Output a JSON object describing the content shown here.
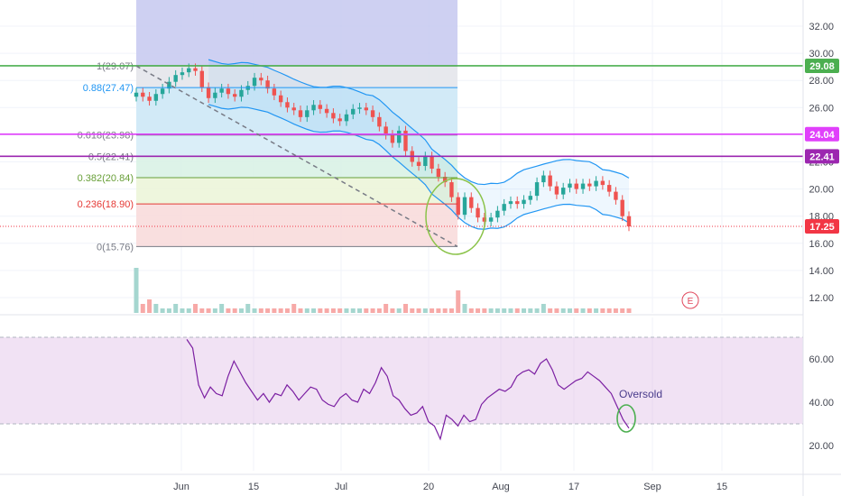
{
  "chart_data": {
    "type": "candlestick",
    "price_axis": {
      "ticks": [
        "32.00",
        "30.00",
        "28.00",
        "26.00",
        "24.00",
        "22.00",
        "20.00",
        "18.00",
        "16.00",
        "14.00",
        "12.00"
      ],
      "range": [
        10.8,
        33.4
      ]
    },
    "x_ticks": [
      "Jun",
      "15",
      "Jul",
      "15",
      "20",
      "Aug",
      "17",
      "Sep",
      "15"
    ],
    "fib_levels": [
      {
        "ratio": "1(29.07)",
        "price": 29.07,
        "color": "#787b86"
      },
      {
        "ratio": "0.88(27.47)",
        "price": 27.47,
        "color": "#2196f3"
      },
      {
        "ratio": "0.618(23.98)",
        "price": 23.98,
        "color": "#787b86"
      },
      {
        "ratio": "0.5(22.41)",
        "price": 22.41,
        "color": "#787b86"
      },
      {
        "ratio": "0.382(20.84)",
        "price": 20.84,
        "color": "#689f38"
      },
      {
        "ratio": "0.236(18.90)",
        "price": 18.9,
        "color": "#e53935"
      },
      {
        "ratio": "0(15.76)",
        "price": 15.76,
        "color": "#787b86"
      }
    ],
    "horizontal_lines": [
      {
        "price": 29.08,
        "label": "29.08",
        "color": "#4caf50"
      },
      {
        "price": 24.04,
        "label": "24.04",
        "color": "#e040fb"
      },
      {
        "price": 22.41,
        "label": "22.41",
        "color": "#9c27b0"
      }
    ],
    "last_price": {
      "price": 17.25,
      "label": "17.25",
      "color": "#f23645"
    },
    "close": [
      27.1,
      26.8,
      26.5,
      27.0,
      27.4,
      27.9,
      28.4,
      28.6,
      28.9,
      28.7,
      27.5,
      26.7,
      27.1,
      27.4,
      27.0,
      26.8,
      27.3,
      27.6,
      28.2,
      28.0,
      27.4,
      26.9,
      26.4,
      26.0,
      25.8,
      25.3,
      25.8,
      26.2,
      25.9,
      25.6,
      25.2,
      25.0,
      25.5,
      25.9,
      26.0,
      25.8,
      25.3,
      24.6,
      24.0,
      23.4,
      24.3,
      22.8,
      22.0,
      21.7,
      22.4,
      21.5,
      20.9,
      20.5,
      19.4,
      18.1,
      19.4,
      18.6,
      17.9,
      17.6,
      17.9,
      18.4,
      18.9,
      19.1,
      18.9,
      19.2,
      19.5,
      20.5,
      21.0,
      20.2,
      19.6,
      20.1,
      20.4,
      20.0,
      20.4,
      20.2,
      20.6,
      20.3,
      19.8,
      19.2,
      18.0,
      17.25
    ],
    "volume": [
      10,
      2,
      3,
      2,
      1,
      1,
      2,
      1,
      1,
      2,
      1,
      1,
      1,
      2,
      1,
      1,
      1,
      2,
      1,
      1,
      1,
      1,
      1,
      1,
      2,
      1,
      1,
      1,
      1,
      1,
      1,
      1,
      1,
      1,
      1,
      1,
      1,
      1,
      2,
      1,
      1,
      2,
      1,
      1,
      1,
      1,
      1,
      1,
      1,
      5,
      2,
      1,
      1,
      1,
      1,
      1,
      1,
      1,
      1,
      1,
      1,
      1,
      2,
      1,
      1,
      1,
      1,
      1,
      1,
      1,
      1,
      1,
      1,
      1,
      1,
      1
    ],
    "rsi": {
      "ticks": [
        "60.00",
        "40.00",
        "20.00"
      ],
      "range": [
        10,
        74
      ],
      "upper": 70,
      "lower": 30,
      "values": [
        69,
        65,
        48,
        42,
        47,
        44,
        43,
        52,
        59,
        54,
        49,
        45,
        41,
        44,
        40,
        44,
        43,
        48,
        45,
        41,
        44,
        47,
        46,
        41,
        39,
        38,
        42,
        44,
        41,
        40,
        46,
        44,
        49,
        56,
        52,
        43,
        41,
        37,
        34,
        35,
        38,
        31,
        29,
        23,
        34,
        32,
        29,
        34,
        31,
        32,
        39,
        42,
        44,
        46,
        45,
        47,
        52,
        54,
        55,
        53,
        58,
        60,
        55,
        48,
        46,
        48,
        50,
        51,
        54,
        52,
        50,
        47,
        44,
        38,
        32,
        28
      ]
    },
    "annotations": {
      "oversold": "Oversold",
      "earnings": "E"
    }
  }
}
